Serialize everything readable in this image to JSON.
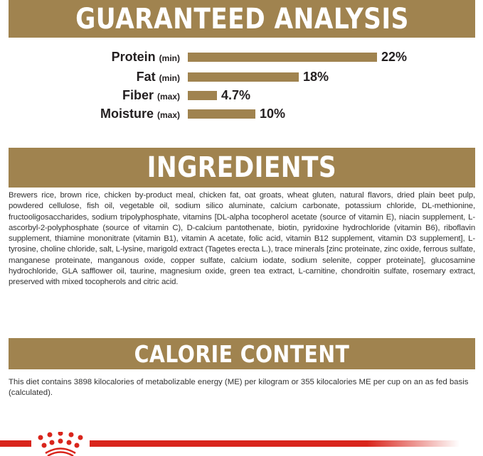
{
  "guaranteed_analysis": {
    "title": "GUARANTEED ANALYSIS",
    "rows": [
      {
        "name": "Protein",
        "qualifier": "(min)",
        "value": "22%",
        "percent": 22
      },
      {
        "name": "Fat",
        "qualifier": "(min)",
        "value": "18%",
        "percent": 18
      },
      {
        "name": "Fiber",
        "qualifier": "(max)",
        "value": "4.7%",
        "percent": 4.7
      },
      {
        "name": "Moisture",
        "qualifier": "(max)",
        "value": "10%",
        "percent": 10
      }
    ]
  },
  "ingredients": {
    "title": "INGREDIENTS",
    "text": "Brewers rice, brown rice, chicken by-product meal, chicken fat, oat groats, wheat gluten, natural flavors, dried plain beet pulp, powdered cellulose, fish oil, vegetable oil, sodium silico aluminate, calcium carbonate, potassium chloride, DL-methionine, fructooligosaccharides, sodium tripolyphosphate, vitamins [DL-alpha tocopherol acetate (source of vitamin E), niacin supplement, L-ascorbyl-2-polyphosphate (source of vitamin C), D-calcium pantothenate, biotin, pyridoxine hydrochloride (vitamin B6), riboflavin supplement, thiamine mononitrate (vitamin B1), vitamin A acetate, folic acid, vitamin B12 supplement, vitamin D3 supplement], L-tyrosine, choline chloride, salt, L-lysine, marigold extract (Tagetes erecta L.), trace minerals [zinc proteinate, zinc oxide, ferrous sulfate, manganese proteinate, manganous oxide, copper sulfate, calcium iodate, sodium selenite, copper proteinate], glucosamine hydrochloride, GLA safflower oil, taurine, magnesium oxide, green tea extract, L-carnitine, chondroitin sulfate, rosemary extract, preserved with mixed tocopherols and citric acid."
  },
  "calorie_content": {
    "title": "CALORIE CONTENT",
    "text": "This diet contains 3898 kilocalories of metabolizable energy (ME) per kilogram or 355 kilocalories ME per cup on an as fed basis (calculated)."
  },
  "colors": {
    "gold": "#a0834f",
    "brand_red": "#d9251c"
  },
  "logo": "royal-canin-crown-logo"
}
